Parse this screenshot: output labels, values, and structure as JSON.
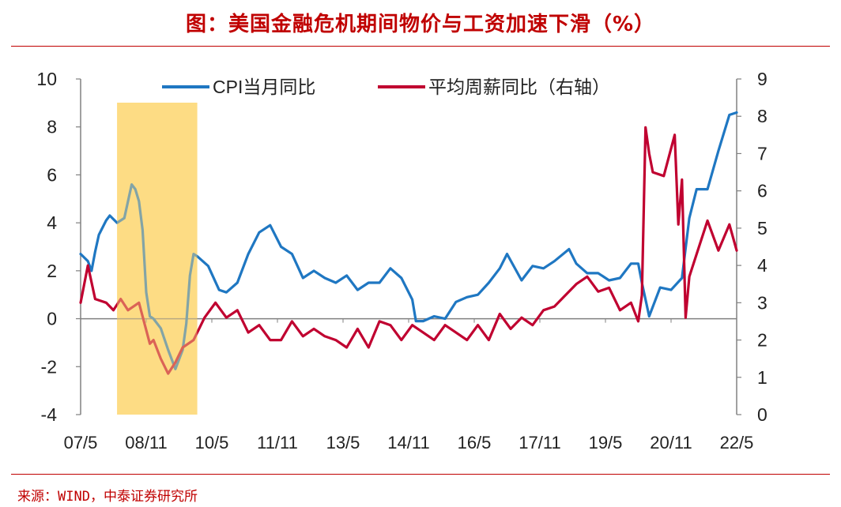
{
  "title": "图：美国金融危机期间物价与工资加速下滑（%）",
  "source": "来源：WIND，中泰证券研究所",
  "chart_data": {
    "type": "line",
    "x_tick_labels": [
      "07/5",
      "08/11",
      "10/5",
      "11/11",
      "13/5",
      "14/11",
      "16/5",
      "17/11",
      "19/5",
      "20/11",
      "22/5"
    ],
    "x_range": [
      "2007-05",
      "2022-05"
    ],
    "y_left": {
      "ticks": [
        10,
        8,
        6,
        4,
        2,
        0,
        -2,
        -4
      ],
      "range": [
        -4,
        10
      ]
    },
    "y_right": {
      "ticks": [
        9,
        8,
        7,
        6,
        5,
        4,
        3,
        2,
        1,
        0
      ],
      "range": [
        0,
        9
      ]
    },
    "legend_position": "top-center",
    "highlight_band": {
      "from": "2008-03",
      "to": "2010-01",
      "color": "#fddc84"
    },
    "series": [
      {
        "name": "CPI当月同比",
        "axis": "left",
        "color": "#1f77c2",
        "x": [
          "2007-05",
          "2007-07",
          "2007-08",
          "2007-09",
          "2007-10",
          "2007-12",
          "2008-01",
          "2008-03",
          "2008-05",
          "2008-07",
          "2008-08",
          "2008-09",
          "2008-10",
          "2008-11",
          "2008-12",
          "2009-01",
          "2009-03",
          "2009-05",
          "2009-07",
          "2009-09",
          "2009-10",
          "2009-11",
          "2009-12",
          "2010-01",
          "2010-04",
          "2010-07",
          "2010-09",
          "2010-12",
          "2011-03",
          "2011-06",
          "2011-09",
          "2011-12",
          "2012-03",
          "2012-06",
          "2012-09",
          "2012-12",
          "2013-03",
          "2013-06",
          "2013-09",
          "2013-12",
          "2014-03",
          "2014-06",
          "2014-09",
          "2014-12",
          "2015-01",
          "2015-03",
          "2015-06",
          "2015-09",
          "2015-12",
          "2016-03",
          "2016-06",
          "2016-09",
          "2016-12",
          "2017-02",
          "2017-06",
          "2017-09",
          "2017-12",
          "2018-03",
          "2018-07",
          "2018-09",
          "2018-12",
          "2019-03",
          "2019-06",
          "2019-09",
          "2019-12",
          "2020-02",
          "2020-03",
          "2020-05",
          "2020-08",
          "2020-11",
          "2021-02",
          "2021-04",
          "2021-06",
          "2021-09",
          "2021-12",
          "2022-03",
          "2022-05"
        ],
        "y": [
          2.7,
          2.4,
          2.0,
          2.8,
          3.5,
          4.1,
          4.3,
          4.0,
          4.2,
          5.6,
          5.4,
          4.9,
          3.7,
          1.1,
          0.1,
          0.0,
          -0.4,
          -1.3,
          -2.1,
          -1.3,
          -0.2,
          1.8,
          2.7,
          2.6,
          2.2,
          1.2,
          1.1,
          1.5,
          2.7,
          3.6,
          3.9,
          3.0,
          2.7,
          1.7,
          2.0,
          1.7,
          1.5,
          1.8,
          1.2,
          1.5,
          1.5,
          2.1,
          1.7,
          0.8,
          -0.1,
          -0.1,
          0.1,
          0.0,
          0.7,
          0.9,
          1.0,
          1.5,
          2.1,
          2.7,
          1.6,
          2.2,
          2.1,
          2.4,
          2.9,
          2.3,
          1.9,
          1.9,
          1.6,
          1.7,
          2.3,
          2.3,
          1.5,
          0.1,
          1.3,
          1.2,
          1.7,
          4.2,
          5.4,
          5.4,
          7.0,
          8.5,
          8.6
        ]
      },
      {
        "name": "平均周薪同比（右轴）",
        "axis": "right",
        "color": "#c00030",
        "x": [
          "2007-05",
          "2007-07",
          "2007-09",
          "2007-12",
          "2008-02",
          "2008-04",
          "2008-06",
          "2008-09",
          "2008-12",
          "2009-01",
          "2009-03",
          "2009-05",
          "2009-07",
          "2009-09",
          "2009-12",
          "2010-03",
          "2010-06",
          "2010-09",
          "2010-12",
          "2011-03",
          "2011-06",
          "2011-09",
          "2011-12",
          "2012-03",
          "2012-06",
          "2012-09",
          "2012-12",
          "2013-03",
          "2013-06",
          "2013-09",
          "2013-12",
          "2014-03",
          "2014-06",
          "2014-09",
          "2014-12",
          "2015-03",
          "2015-06",
          "2015-09",
          "2015-12",
          "2016-03",
          "2016-06",
          "2016-09",
          "2016-12",
          "2017-03",
          "2017-06",
          "2017-09",
          "2017-12",
          "2018-03",
          "2018-06",
          "2018-09",
          "2018-12",
          "2019-03",
          "2019-06",
          "2019-09",
          "2019-12",
          "2020-02",
          "2020-03",
          "2020-04",
          "2020-05",
          "2020-06",
          "2020-09",
          "2020-12",
          "2021-01",
          "2021-02",
          "2021-03",
          "2021-04",
          "2021-06",
          "2021-09",
          "2021-12",
          "2022-03",
          "2022-05"
        ],
        "y": [
          3.0,
          4.0,
          3.1,
          3.0,
          2.8,
          3.1,
          2.8,
          3.0,
          1.9,
          2.0,
          1.5,
          1.1,
          1.4,
          1.8,
          2.0,
          2.6,
          3.0,
          2.6,
          2.8,
          2.2,
          2.4,
          2.0,
          2.0,
          2.5,
          2.1,
          2.3,
          2.1,
          2.0,
          1.8,
          2.3,
          1.8,
          2.5,
          2.4,
          2.0,
          2.4,
          2.2,
          2.0,
          2.4,
          2.2,
          2.0,
          2.4,
          2.0,
          2.7,
          2.3,
          2.6,
          2.4,
          2.8,
          2.9,
          3.2,
          3.5,
          3.7,
          3.3,
          3.4,
          2.8,
          3.0,
          2.5,
          3.2,
          7.7,
          7.0,
          6.5,
          6.4,
          7.5,
          5.1,
          6.3,
          2.6,
          3.7,
          4.3,
          5.2,
          4.4,
          5.1,
          4.4
        ]
      }
    ]
  }
}
